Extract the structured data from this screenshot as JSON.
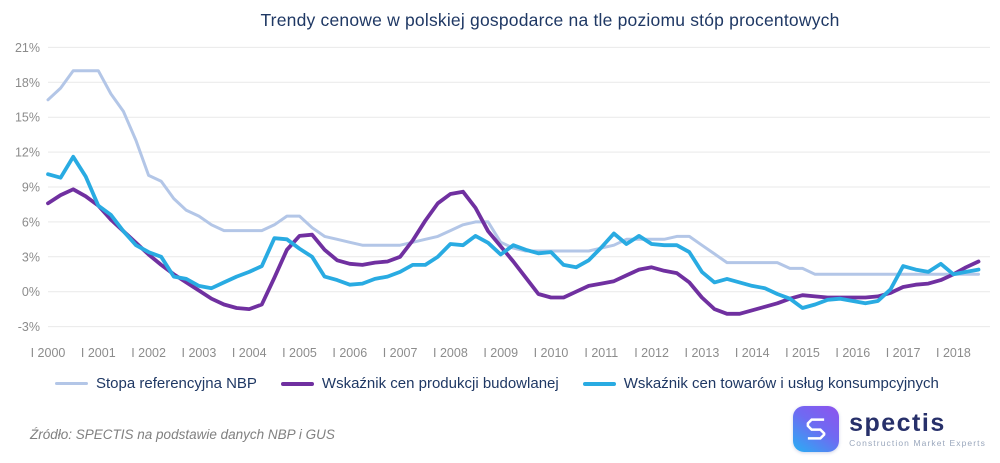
{
  "title": "Trendy cenowe w polskiej gospodarce na tle poziomu stóp procentowych",
  "source": "Źródło: SPECTIS na podstawie danych NBP i GUS",
  "logo": {
    "name": "spectis",
    "tagline": "Construction Market Experts"
  },
  "colors": {
    "title_text": "#1f3864",
    "axis_text": "#8c8c8c",
    "grid": "#e9e9e9",
    "source_text": "#808080",
    "nbp_line": "#b3c6e7",
    "construction_line": "#7030a0",
    "cpi_line": "#29abe2"
  },
  "chart_data": {
    "type": "line",
    "title": "Trendy cenowe w polskiej gospodarce na tle poziomu stóp procentowych",
    "x_start_year": 2000,
    "points_per_year": 4,
    "x_end": "2018 Q3",
    "x_tick_labels": [
      "I 2000",
      "I 2001",
      "I 2002",
      "I 2003",
      "I 2004",
      "I 2005",
      "I 2006",
      "I 2007",
      "I 2008",
      "I 2009",
      "I 2010",
      "I 2011",
      "I 2012",
      "I 2013",
      "I 2014",
      "I 2015",
      "I 2016",
      "I 2017",
      "I 2018"
    ],
    "ylim": [
      -3,
      21
    ],
    "y_tick_values": [
      21,
      18,
      15,
      12,
      9,
      6,
      3,
      0,
      -3
    ],
    "y_tick_labels": [
      "21%",
      "18%",
      "15%",
      "12%",
      "9%",
      "6%",
      "3%",
      "0%",
      "-3%"
    ],
    "grid": true,
    "legend_position": "bottom",
    "unit": "%",
    "series": [
      {
        "name": "Stopa referencyjna NBP",
        "color": "#b3c6e7",
        "width": 3,
        "values": [
          16.5,
          17.5,
          19,
          19,
          19,
          17,
          15.5,
          13,
          10,
          9.5,
          8,
          7,
          6.5,
          5.75,
          5.25,
          5.25,
          5.25,
          5.25,
          5.75,
          6.5,
          6.5,
          5.5,
          4.75,
          4.5,
          4.25,
          4,
          4,
          4,
          4,
          4.25,
          4.5,
          4.75,
          5.25,
          5.75,
          6,
          6,
          4.25,
          3.75,
          3.5,
          3.5,
          3.5,
          3.5,
          3.5,
          3.5,
          3.75,
          4,
          4.5,
          4.5,
          4.5,
          4.5,
          4.75,
          4.75,
          4,
          3.25,
          2.5,
          2.5,
          2.5,
          2.5,
          2.5,
          2,
          2,
          1.5,
          1.5,
          1.5,
          1.5,
          1.5,
          1.5,
          1.5,
          1.5,
          1.5,
          1.5,
          1.5,
          1.5,
          1.5,
          1.5
        ]
      },
      {
        "name": "Wskaźnik cen produkcji budowlanej",
        "color": "#7030a0",
        "width": 3.8,
        "values": [
          7.6,
          8.3,
          8.8,
          8.2,
          7.4,
          6.2,
          5.2,
          4.2,
          3.2,
          2.3,
          1.5,
          0.8,
          0.1,
          -0.6,
          -1.1,
          -1.4,
          -1.5,
          -1.1,
          1.2,
          3.6,
          4.8,
          4.9,
          3.6,
          2.7,
          2.4,
          2.3,
          2.5,
          2.6,
          3.0,
          4.4,
          6.1,
          7.6,
          8.4,
          8.6,
          7.2,
          5.2,
          3.9,
          2.6,
          1.2,
          -0.2,
          -0.5,
          -0.5,
          0.0,
          0.5,
          0.7,
          0.9,
          1.4,
          1.9,
          2.1,
          1.8,
          1.6,
          0.8,
          -0.5,
          -1.5,
          -1.9,
          -1.9,
          -1.6,
          -1.3,
          -1.0,
          -0.6,
          -0.3,
          -0.4,
          -0.5,
          -0.5,
          -0.5,
          -0.5,
          -0.4,
          -0.1,
          0.4,
          0.6,
          0.7,
          1.0,
          1.5,
          2.1,
          2.6
        ]
      },
      {
        "name": "Wskaźnik cen towarów i usług konsumpcyjnych",
        "color": "#29abe2",
        "width": 3.8,
        "values": [
          10.1,
          9.8,
          11.6,
          9.9,
          7.4,
          6.6,
          5.2,
          4.0,
          3.4,
          3.0,
          1.3,
          1.1,
          0.5,
          0.3,
          0.8,
          1.3,
          1.7,
          2.2,
          4.6,
          4.5,
          3.7,
          3.0,
          1.3,
          1.0,
          0.6,
          0.7,
          1.1,
          1.3,
          1.7,
          2.3,
          2.3,
          3.0,
          4.1,
          4.0,
          4.8,
          4.2,
          3.2,
          4.0,
          3.6,
          3.3,
          3.4,
          2.3,
          2.1,
          2.7,
          3.8,
          5.0,
          4.1,
          4.8,
          4.1,
          4.0,
          4.0,
          3.4,
          1.7,
          0.8,
          1.1,
          0.8,
          0.5,
          0.3,
          -0.2,
          -0.6,
          -1.4,
          -1.1,
          -0.7,
          -0.6,
          -0.8,
          -1.0,
          -0.8,
          0.2,
          2.2,
          1.9,
          1.7,
          2.4,
          1.5,
          1.7,
          1.9
        ]
      }
    ]
  }
}
